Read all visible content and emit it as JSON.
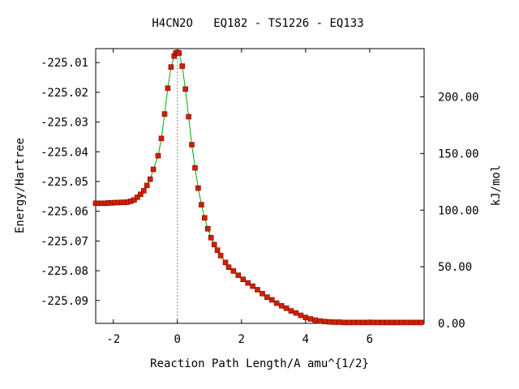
{
  "chart_data": {
    "type": "line",
    "title": "H4CN2O   EQ182 - TS1226 - EQ133",
    "xlabel": "Reaction Path Length/A amu^{1/2}",
    "ylabel": "Energy/Hartree",
    "y2label": "kJ/mol",
    "xlim": [
      -2.55,
      7.7
    ],
    "ylim": [
      -225.0977,
      -225.0053
    ],
    "y2lim": [
      0.0,
      242.6
    ],
    "xticks": [
      -2,
      0,
      2,
      4,
      6
    ],
    "xtick_labels": [
      "-2",
      "0",
      "2",
      "4",
      "6"
    ],
    "yticks": [
      -225.01,
      -225.02,
      -225.03,
      -225.04,
      -225.05,
      -225.06,
      -225.07,
      -225.08,
      -225.09
    ],
    "ytick_labels": [
      "-225.01",
      "-225.02",
      "-225.03",
      "-225.04",
      "-225.05",
      "-225.06",
      "-225.07",
      "-225.08",
      "-225.09"
    ],
    "y2ticks": [
      0,
      50,
      100,
      150,
      200
    ],
    "y2tick_labels": [
      "0.00",
      "50.00",
      "100.00",
      "150.00",
      "200.00"
    ],
    "ts_marker_x": 0.0,
    "grid": false,
    "line_color": "#00aa00",
    "marker_color": "#cc2200",
    "marker_edge_color": "#8b0000",
    "ts_line_color": "#888888",
    "series": [
      {
        "x": [
          -2.55,
          -2.45,
          -2.35,
          -2.25,
          -2.15,
          -2.05,
          -1.95,
          -1.85,
          -1.75,
          -1.65,
          -1.55,
          -1.45,
          -1.35,
          -1.25,
          -1.15,
          -1.05,
          -0.95,
          -0.85,
          -0.75,
          -0.6,
          -0.5,
          -0.4,
          -0.3,
          -0.2,
          -0.1,
          -0.05,
          0.0,
          0.05,
          0.15,
          0.25,
          0.35,
          0.45,
          0.55,
          0.65,
          0.75,
          0.85,
          0.95,
          1.05,
          1.15,
          1.25,
          1.35,
          1.5,
          1.6,
          1.75,
          1.9,
          2.05,
          2.2,
          2.35,
          2.5,
          2.65,
          2.8,
          2.95,
          3.1,
          3.25,
          3.4,
          3.55,
          3.7,
          3.85,
          4.0,
          4.15,
          4.3,
          4.45,
          4.6,
          4.75,
          4.9,
          5.05,
          5.2,
          5.35,
          5.5,
          5.65,
          5.8,
          5.95,
          6.1,
          6.25,
          6.4,
          6.55,
          6.7,
          6.85,
          7.0,
          7.15,
          7.3,
          7.45,
          7.6
        ],
        "y": [
          -225.0573,
          -225.0573,
          -225.0573,
          -225.0573,
          -225.0572,
          -225.0572,
          -225.0571,
          -225.0571,
          -225.057,
          -225.057,
          -225.0569,
          -225.0566,
          -225.0562,
          -225.0553,
          -225.0543,
          -225.0531,
          -225.0513,
          -225.0492,
          -225.0459,
          -225.0413,
          -225.0355,
          -225.0273,
          -225.0186,
          -225.0115,
          -225.0078,
          -225.0068,
          -225.0066,
          -225.0068,
          -225.0112,
          -225.0189,
          -225.0282,
          -225.0376,
          -225.0454,
          -225.0522,
          -225.0578,
          -225.0622,
          -225.0659,
          -225.0689,
          -225.0712,
          -225.0731,
          -225.0749,
          -225.0772,
          -225.0788,
          -225.0801,
          -225.0815,
          -225.0829,
          -225.0841,
          -225.0852,
          -225.0864,
          -225.0877,
          -225.0889,
          -225.0898,
          -225.0909,
          -225.0918,
          -225.0926,
          -225.0935,
          -225.0942,
          -225.095,
          -225.0957,
          -225.0962,
          -225.0966,
          -225.0969,
          -225.0971,
          -225.0972,
          -225.0973,
          -225.0973,
          -225.0974,
          -225.0974,
          -225.0974,
          -225.0974,
          -225.0974,
          -225.0974,
          -225.0974,
          -225.0974,
          -225.0974,
          -225.0974,
          -225.0974,
          -225.0974,
          -225.0974,
          -225.0974,
          -225.0974,
          -225.0974,
          -225.0974
        ]
      }
    ]
  }
}
